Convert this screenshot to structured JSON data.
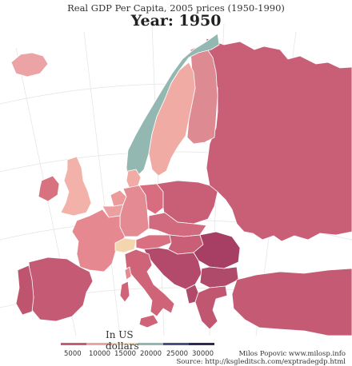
{
  "title": "Real GDP Per Capita, 2005 prices (1950-1990)",
  "year_label": "Year: 1950",
  "legend": {
    "title": "In US dollars",
    "ticks": [
      "5000",
      "10000",
      "15000",
      "20000",
      "25000",
      "30000"
    ],
    "colors": [
      "#c75b73",
      "#eea3a3",
      "#f3d9b1",
      "#91b7b0",
      "#4a4e80",
      "#2c2a55"
    ]
  },
  "credits": {
    "author": "Milos Popovic www.milosp.info",
    "source": "Source: http://ksgleditsch.com/exptradegdp.html"
  },
  "map": {
    "year": 1950,
    "regions": [
      {
        "name": "Norway",
        "color": "#93b8b2"
      },
      {
        "name": "Sweden",
        "color": "#f0aca4"
      },
      {
        "name": "Finland",
        "color": "#dd8a93"
      },
      {
        "name": "Soviet Union",
        "color": "#c95f77"
      },
      {
        "name": "Iceland",
        "color": "#eca3a6"
      },
      {
        "name": "United Kingdom",
        "color": "#f2b2aa"
      },
      {
        "name": "Ireland",
        "color": "#d9727f"
      },
      {
        "name": "Denmark",
        "color": "#f0aca4"
      },
      {
        "name": "Netherlands",
        "color": "#ec9a9c"
      },
      {
        "name": "Belgium",
        "color": "#ec9fa0"
      },
      {
        "name": "France",
        "color": "#e58890"
      },
      {
        "name": "Switzerland",
        "color": "#f4d6ae"
      },
      {
        "name": "West Germany",
        "color": "#e48a92"
      },
      {
        "name": "East Germany",
        "color": "#d86d80"
      },
      {
        "name": "Poland",
        "color": "#c95f77"
      },
      {
        "name": "Czechoslovakia",
        "color": "#d16a7f"
      },
      {
        "name": "Austria",
        "color": "#d87081"
      },
      {
        "name": "Hungary",
        "color": "#c95f77"
      },
      {
        "name": "Italy",
        "color": "#cf6479"
      },
      {
        "name": "Spain",
        "color": "#c45a73"
      },
      {
        "name": "Portugal",
        "color": "#bf546f"
      },
      {
        "name": "Yugoslavia",
        "color": "#b34a6b"
      },
      {
        "name": "Romania",
        "color": "#a63f63"
      },
      {
        "name": "Bulgaria",
        "color": "#b04a6a"
      },
      {
        "name": "Albania",
        "color": "#b04a6a"
      },
      {
        "name": "Greece",
        "color": "#c0566f"
      },
      {
        "name": "Turkey",
        "color": "#c45a73"
      }
    ]
  }
}
